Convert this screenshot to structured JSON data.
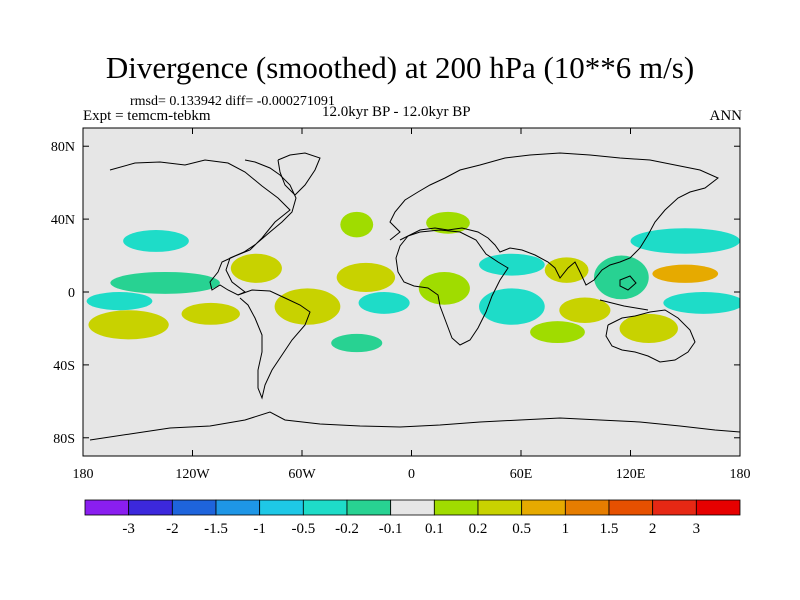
{
  "figure": {
    "title": "Divergence (smoothed) at 200 hPa (10**6 m/s)",
    "stats": "rmsd= 0.133942 diff= -0.000271091",
    "experiment": "Expt = temcm-tebkm",
    "period": "12.0kyr BP - 12.0kyr BP",
    "season": "ANN"
  },
  "chart_data": {
    "type": "heatmap",
    "projection": "cylindrical-equidistant",
    "variable": "Divergence (smoothed) at 200 hPa",
    "units": "10**6 m/s",
    "x_axis": {
      "range": [
        -180,
        180
      ],
      "ticks": [
        -180,
        -120,
        -60,
        0,
        60,
        120,
        180
      ],
      "tick_labels": [
        "180",
        "120W",
        "60W",
        "0",
        "60E",
        "120E",
        "180"
      ]
    },
    "y_axis": {
      "range": [
        -90,
        90
      ],
      "ticks": [
        80,
        40,
        0,
        -40,
        -80
      ],
      "tick_labels": [
        "80N",
        "40N",
        "0",
        "40S",
        "80S"
      ]
    },
    "colorbar": {
      "labels": [
        "-3",
        "-2",
        "-1.5",
        "-1",
        "-0.5",
        "-0.2",
        "-0.1",
        "0.1",
        "0.2",
        "0.5",
        "1",
        "1.5",
        "2",
        "3"
      ],
      "colors": [
        "#8a1ef0",
        "#3c28dc",
        "#1e64dc",
        "#1e96e6",
        "#1ec8e6",
        "#1edcc8",
        "#28d292",
        "#e6e6e6",
        "#a0dc00",
        "#c8d200",
        "#e6aa00",
        "#e67d00",
        "#e65000",
        "#e62814",
        "#e60000"
      ]
    },
    "regions": [
      {
        "name": "north-atlantic-divergence",
        "lon": -30,
        "lat": 37,
        "rx": 9,
        "ry": 7,
        "class": 8
      },
      {
        "name": "mediterranean-divergence",
        "lon": 20,
        "lat": 38,
        "rx": 12,
        "ry": 6,
        "class": 8
      },
      {
        "name": "north-pacific-convergence",
        "lon": -140,
        "lat": 28,
        "rx": 18,
        "ry": 6,
        "class": 5
      },
      {
        "name": "northwest-pacific-convergence",
        "lon": 150,
        "lat": 28,
        "rx": 30,
        "ry": 7,
        "class": 5
      },
      {
        "name": "asia-arabia-convergence",
        "lon": 55,
        "lat": 15,
        "rx": 18,
        "ry": 6,
        "class": 5
      },
      {
        "name": "india-divergence",
        "lon": 85,
        "lat": 12,
        "rx": 12,
        "ry": 7,
        "class": 9
      },
      {
        "name": "gulf-mexico-divergence",
        "lon": -85,
        "lat": 13,
        "rx": 14,
        "ry": 8,
        "class": 9
      },
      {
        "name": "tropical-pacific-convergence",
        "lon": -135,
        "lat": 5,
        "rx": 30,
        "ry": 6,
        "class": 6
      },
      {
        "name": "maritime-continent-convergence",
        "lon": 115,
        "lat": 8,
        "rx": 15,
        "ry": 12,
        "class": 6
      },
      {
        "name": "west-pacific-divergence",
        "lon": 150,
        "lat": 10,
        "rx": 18,
        "ry": 5,
        "class": 10
      },
      {
        "name": "tropical-atlantic-divergence",
        "lon": -25,
        "lat": 8,
        "rx": 16,
        "ry": 8,
        "class": 9
      },
      {
        "name": "africa-divergence",
        "lon": 18,
        "lat": 2,
        "rx": 14,
        "ry": 9,
        "class": 8
      },
      {
        "name": "amazon-divergence",
        "lon": -57,
        "lat": -8,
        "rx": 18,
        "ry": 10,
        "class": 9
      },
      {
        "name": "atlantic-south-convergence",
        "lon": -15,
        "lat": -6,
        "rx": 14,
        "ry": 6,
        "class": 5
      },
      {
        "name": "indian-ocean-convergence",
        "lon": 55,
        "lat": -8,
        "rx": 18,
        "ry": 10,
        "class": 5
      },
      {
        "name": "indian-ocean-divergence",
        "lon": 95,
        "lat": -10,
        "rx": 14,
        "ry": 7,
        "class": 9
      },
      {
        "name": "australia-divergence",
        "lon": 130,
        "lat": -20,
        "rx": 16,
        "ry": 8,
        "class": 9
      },
      {
        "name": "south-pacific-band-convergence",
        "lon": 160,
        "lat": -6,
        "rx": 22,
        "ry": 6,
        "class": 5
      },
      {
        "name": "south-pacific-divergence",
        "lon": -155,
        "lat": -18,
        "rx": 22,
        "ry": 8,
        "class": 9
      },
      {
        "name": "southeast-pacific-divergence",
        "lon": -110,
        "lat": -12,
        "rx": 16,
        "ry": 6,
        "class": 9
      },
      {
        "name": "south-pacific-convergence",
        "lon": -160,
        "lat": -5,
        "rx": 18,
        "ry": 5,
        "class": 5
      },
      {
        "name": "southern-indian-divergence",
        "lon": 80,
        "lat": -22,
        "rx": 15,
        "ry": 6,
        "class": 8
      },
      {
        "name": "southern-atlantic-convergence",
        "lon": -30,
        "lat": -28,
        "rx": 14,
        "ry": 5,
        "class": 6
      }
    ]
  }
}
